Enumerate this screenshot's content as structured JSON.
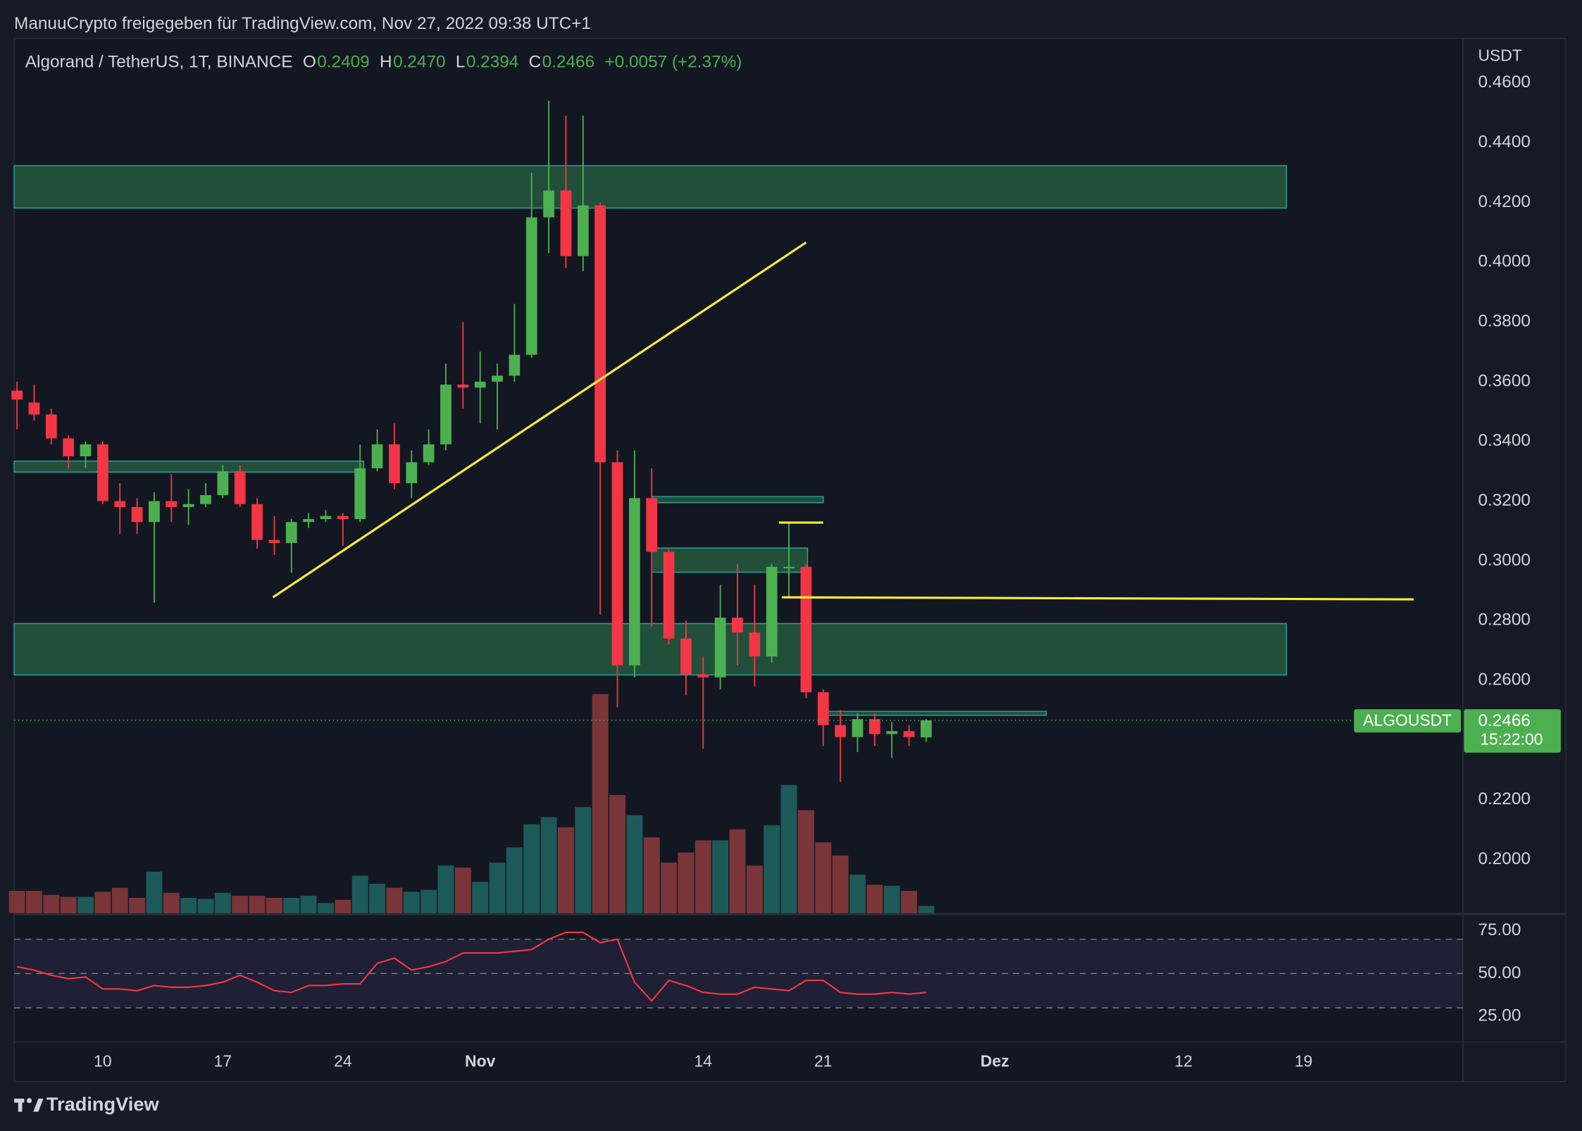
{
  "header": {
    "title": "ManuuCrypto freigegeben für TradingView.com, Nov 27, 2022 09:38 UTC+1"
  },
  "footer": {
    "brand": "TradingView"
  },
  "chart_data": [
    {
      "type": "candlestick",
      "title": "Algorand / TetherUS, 1T, BINANCE",
      "legend_items": [
        {
          "key": "O",
          "value": "0.2409"
        },
        {
          "key": "H",
          "value": "0.2470"
        },
        {
          "key": "L",
          "value": "0.2394"
        },
        {
          "key": "C",
          "value": "0.2466"
        }
      ],
      "change": "+0.0057 (+2.37%)",
      "y_unit": "USDT",
      "x": [
        "2022-10-05",
        "2022-10-06",
        "2022-10-07",
        "2022-10-08",
        "2022-10-09",
        "2022-10-10",
        "2022-10-11",
        "2022-10-12",
        "2022-10-13",
        "2022-10-14",
        "2022-10-15",
        "2022-10-16",
        "2022-10-17",
        "2022-10-18",
        "2022-10-19",
        "2022-10-20",
        "2022-10-21",
        "2022-10-22",
        "2022-10-23",
        "2022-10-24",
        "2022-10-25",
        "2022-10-26",
        "2022-10-27",
        "2022-10-28",
        "2022-10-29",
        "2022-10-30",
        "2022-10-31",
        "2022-11-01",
        "2022-11-02",
        "2022-11-03",
        "2022-11-04",
        "2022-11-05",
        "2022-11-06",
        "2022-11-07",
        "2022-11-08",
        "2022-11-09",
        "2022-11-10",
        "2022-11-11",
        "2022-11-12",
        "2022-11-13",
        "2022-11-14",
        "2022-11-15",
        "2022-11-16",
        "2022-11-17",
        "2022-11-18",
        "2022-11-19",
        "2022-11-20",
        "2022-11-21",
        "2022-11-22",
        "2022-11-23",
        "2022-11-24",
        "2022-11-25",
        "2022-11-26",
        "2022-11-27"
      ],
      "open": [
        0.357,
        0.353,
        0.349,
        0.341,
        0.335,
        0.339,
        0.32,
        0.318,
        0.313,
        0.32,
        0.318,
        0.319,
        0.322,
        0.33,
        0.319,
        0.307,
        0.306,
        0.313,
        0.314,
        0.315,
        0.314,
        0.331,
        0.339,
        0.326,
        0.333,
        0.339,
        0.359,
        0.358,
        0.36,
        0.362,
        0.369,
        0.415,
        0.424,
        0.402,
        0.419,
        0.333,
        0.265,
        0.321,
        0.303,
        0.274,
        0.262,
        0.261,
        0.281,
        0.276,
        0.268,
        0.298,
        0.298,
        0.256,
        0.245,
        0.241,
        0.247,
        0.242,
        0.243,
        0.2409
      ],
      "high": [
        0.36,
        0.359,
        0.351,
        0.342,
        0.34,
        0.34,
        0.326,
        0.321,
        0.323,
        0.329,
        0.324,
        0.326,
        0.332,
        0.332,
        0.321,
        0.315,
        0.314,
        0.316,
        0.317,
        0.316,
        0.339,
        0.344,
        0.346,
        0.337,
        0.344,
        0.366,
        0.38,
        0.37,
        0.366,
        0.386,
        0.43,
        0.454,
        0.449,
        0.449,
        0.42,
        0.337,
        0.337,
        0.331,
        0.304,
        0.28,
        0.268,
        0.292,
        0.299,
        0.292,
        0.299,
        0.313,
        0.299,
        0.257,
        0.25,
        0.249,
        0.249,
        0.246,
        0.245,
        0.247
      ],
      "low": [
        0.344,
        0.347,
        0.339,
        0.331,
        0.331,
        0.319,
        0.309,
        0.309,
        0.286,
        0.313,
        0.312,
        0.318,
        0.321,
        0.318,
        0.304,
        0.302,
        0.296,
        0.311,
        0.313,
        0.305,
        0.313,
        0.33,
        0.324,
        0.321,
        0.332,
        0.337,
        0.351,
        0.346,
        0.344,
        0.36,
        0.368,
        0.403,
        0.398,
        0.397,
        0.282,
        0.251,
        0.261,
        0.278,
        0.272,
        0.255,
        0.237,
        0.257,
        0.265,
        0.258,
        0.266,
        0.288,
        0.254,
        0.238,
        0.226,
        0.236,
        0.238,
        0.234,
        0.238,
        0.2394
      ],
      "close": [
        0.354,
        0.349,
        0.341,
        0.335,
        0.339,
        0.32,
        0.318,
        0.313,
        0.32,
        0.318,
        0.319,
        0.322,
        0.33,
        0.319,
        0.307,
        0.306,
        0.313,
        0.314,
        0.315,
        0.314,
        0.331,
        0.339,
        0.326,
        0.333,
        0.339,
        0.359,
        0.358,
        0.36,
        0.362,
        0.369,
        0.415,
        0.424,
        0.402,
        0.419,
        0.333,
        0.265,
        0.321,
        0.303,
        0.274,
        0.262,
        0.261,
        0.281,
        0.276,
        0.268,
        0.298,
        0.298,
        0.256,
        0.245,
        0.241,
        0.247,
        0.242,
        0.243,
        0.241,
        0.2466
      ],
      "volume": [
        22,
        22,
        18,
        16,
        16,
        21,
        25,
        15,
        41,
        20,
        15,
        14,
        20,
        17,
        17,
        15,
        15,
        17,
        10,
        13,
        37,
        29,
        25,
        21,
        23,
        47,
        45,
        31,
        50,
        65,
        88,
        95,
        85,
        105,
        217,
        117,
        97,
        75,
        50,
        60,
        72,
        72,
        83,
        47,
        87,
        127,
        102,
        70,
        57,
        38,
        28,
        27,
        22,
        7
      ],
      "volume_lim": [
        0,
        867
      ],
      "up_color": "#4caf50",
      "down_color": "#f23645",
      "volume_up_color": "#1c5a5a",
      "volume_down_color": "#7a3538",
      "xlim": [
        "2022-10-04T20:00",
        "2022-12-28T07:00"
      ],
      "xticks": [
        {
          "value": "2022-10-10",
          "label": "10"
        },
        {
          "value": "2022-10-17",
          "label": "17"
        },
        {
          "value": "2022-10-24",
          "label": "24"
        },
        {
          "value": "2022-11-01",
          "label": "Nov"
        },
        {
          "value": "2022-11-14",
          "label": "14"
        },
        {
          "value": "2022-11-21",
          "label": "21"
        },
        {
          "value": "2022-12-01",
          "label": "Dez"
        },
        {
          "value": "2022-12-12",
          "label": "12"
        },
        {
          "value": "2022-12-19",
          "label": "19"
        }
      ],
      "ylim": [
        0.1821,
        0.4749
      ],
      "yticks": [
        {
          "value": 0.46,
          "label": "0.4600"
        },
        {
          "value": 0.44,
          "label": "0.4400"
        },
        {
          "value": 0.42,
          "label": "0.4200"
        },
        {
          "value": 0.4,
          "label": "0.4000"
        },
        {
          "value": 0.38,
          "label": "0.3800"
        },
        {
          "value": 0.36,
          "label": "0.3600"
        },
        {
          "value": 0.34,
          "label": "0.3400"
        },
        {
          "value": 0.32,
          "label": "0.3200"
        },
        {
          "value": 0.3,
          "label": "0.3000"
        },
        {
          "value": 0.28,
          "label": "0.2800"
        },
        {
          "value": 0.26,
          "label": "0.2600"
        },
        {
          "value": 0.22,
          "label": "0.2200"
        },
        {
          "value": 0.2,
          "label": "0.2000"
        }
      ],
      "grid": false,
      "zone_color": "#2e7d4f",
      "zones": [
        {
          "from": "2022-10-04T20:00",
          "to": "2022-12-18T00:00",
          "low": 0.4181,
          "high": 0.4323
        },
        {
          "from": "2022-10-04T20:00",
          "to": "2022-10-25T05:00",
          "low": 0.3297,
          "high": 0.3334
        },
        {
          "from": "2022-10-04T20:00",
          "to": "2022-12-18T00:00",
          "low": 0.2618,
          "high": 0.279
        },
        {
          "from": "2022-11-11T00:00",
          "to": "2022-11-21T00:00",
          "low": 0.3195,
          "high": 0.3215
        },
        {
          "from": "2022-11-11T00:00",
          "to": "2022-11-20T02:00",
          "low": 0.2962,
          "high": 0.3043
        },
        {
          "from": "2022-11-21T00:00",
          "to": "2022-12-04T00:00",
          "low": 0.2483,
          "high": 0.2496
        }
      ],
      "line_color": "#ffeb3b",
      "lines": [
        {
          "from": "2022-10-19T22:00",
          "to": "2022-11-20T00:00",
          "start": 0.2878,
          "end": 0.4066
        },
        {
          "from": "2022-11-18T14:00",
          "to": "2022-12-25T10:00",
          "start": 0.2878,
          "end": 0.2871
        },
        {
          "from": "2022-11-18T10:00",
          "to": "2022-11-21T00:00",
          "start": 0.3128,
          "end": 0.3128
        }
      ],
      "last_price": {
        "symbol": "ALGOUSDT",
        "value": 0.2466,
        "countdown": "15:22:00",
        "color": "#4caf50"
      }
    },
    {
      "type": "line",
      "x": [
        "2022-10-05",
        "2022-10-06",
        "2022-10-07",
        "2022-10-08",
        "2022-10-09",
        "2022-10-10",
        "2022-10-11",
        "2022-10-12",
        "2022-10-13",
        "2022-10-14",
        "2022-10-15",
        "2022-10-16",
        "2022-10-17",
        "2022-10-18",
        "2022-10-19",
        "2022-10-20",
        "2022-10-21",
        "2022-10-22",
        "2022-10-23",
        "2022-10-24",
        "2022-10-25",
        "2022-10-26",
        "2022-10-27",
        "2022-10-28",
        "2022-10-29",
        "2022-10-30",
        "2022-10-31",
        "2022-11-01",
        "2022-11-02",
        "2022-11-03",
        "2022-11-04",
        "2022-11-05",
        "2022-11-06",
        "2022-11-07",
        "2022-11-08",
        "2022-11-09",
        "2022-11-10",
        "2022-11-11",
        "2022-11-12",
        "2022-11-13",
        "2022-11-14",
        "2022-11-15",
        "2022-11-16",
        "2022-11-17",
        "2022-11-18",
        "2022-11-19",
        "2022-11-20",
        "2022-11-21",
        "2022-11-22",
        "2022-11-23",
        "2022-11-24",
        "2022-11-25",
        "2022-11-26",
        "2022-11-27"
      ],
      "values": [
        54,
        52,
        49,
        47,
        48,
        41,
        41,
        40,
        43,
        42,
        42,
        43,
        45,
        49,
        45,
        40,
        39,
        43,
        43,
        44,
        44,
        56,
        59,
        52,
        54,
        57,
        62,
        62,
        62,
        63,
        64,
        70,
        74,
        74,
        68,
        70,
        45,
        34,
        46,
        43,
        39,
        38,
        38,
        42,
        41,
        40,
        46,
        46,
        39,
        38,
        38,
        39,
        38,
        39
      ],
      "color": "#f23645",
      "ylim": [
        10.6,
        84.1
      ],
      "yticks": [
        {
          "value": 75,
          "label": "75.00"
        },
        {
          "value": 50,
          "label": "50.00"
        },
        {
          "value": 25,
          "label": "25.00"
        }
      ],
      "levels": [
        70,
        50,
        30
      ],
      "band_color": "#7e57c2"
    }
  ]
}
